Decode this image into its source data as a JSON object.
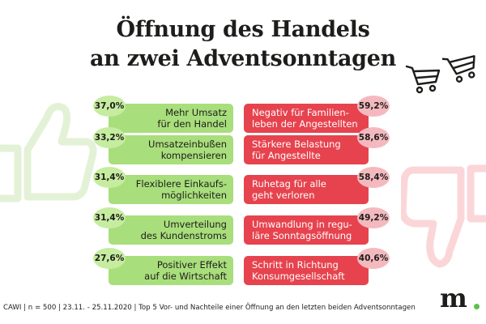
{
  "title_line1": "Öffnung des Handels",
  "title_line2": "an zwei Adventsonntagen",
  "footer": "CAWI | n = 500 | 23.11. - 25.11.2020 | Top 5 Vor- und Nachteile einer Öffnung an den letzten beiden Adventsonntagen",
  "logo": "m",
  "colors": {
    "pro": "#a9de7c",
    "pro_badge": "#c6eca0",
    "con": "#e6434e",
    "con_badge": "#f4b9be",
    "logo_dot": "#5cc14a"
  },
  "icons": [
    "thumbs-up-icon",
    "thumbs-down-icon",
    "shopping-cart-icon",
    "shopping-cart-icon"
  ],
  "chart_data": {
    "type": "table",
    "columns": [
      {
        "items": [
          {
            "label": "Mehr Umsatz\nfür den Handel",
            "value": "37,0%"
          },
          {
            "label": "Umsatzeinbußen\nkompensieren",
            "value": "33,2%"
          },
          {
            "label": "Flexiblere Einkaufs-\nmöglichkeiten",
            "value": "31,4%"
          },
          {
            "label": "Umverteilung\ndes Kundenstroms",
            "value": "31,4%"
          },
          {
            "label": "Positiver Effekt\nauf die Wirtschaft",
            "value": "27,6%"
          }
        ]
      },
      {
        "items": [
          {
            "label": "Negativ für Familien-\nleben der Angestellten",
            "value": "59,2%"
          },
          {
            "label": "Stärkere Belastung\nfür Angestellte",
            "value": "58,6%"
          },
          {
            "label": "Ruhetag für alle\ngeht verloren",
            "value": "58,4%"
          },
          {
            "label": "Umwandlung in regu-\nläre Sonntagsöffnung",
            "value": "49,2%"
          },
          {
            "label": "Schritt in Richtung\nKonsumgesellschaft",
            "value": "40,6%"
          }
        ]
      }
    ]
  }
}
